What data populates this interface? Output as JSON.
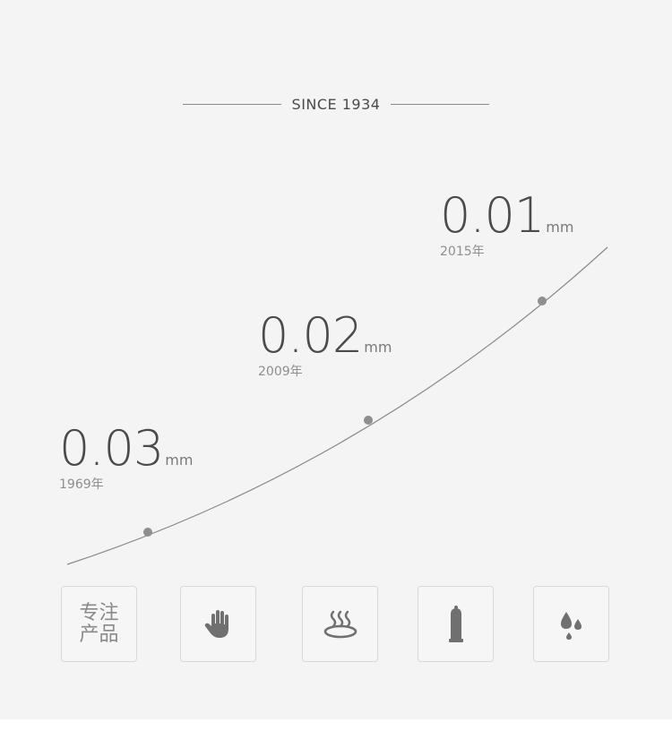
{
  "header": {
    "since_label": "SINCE 1934"
  },
  "milestones": [
    {
      "value": "0.03",
      "unit": "mm",
      "year": "1969年"
    },
    {
      "value": "0.02",
      "unit": "mm",
      "year": "2009年"
    },
    {
      "value": "0.01",
      "unit": "mm",
      "year": "2015年"
    }
  ],
  "features": [
    {
      "label": "专注产品",
      "icon": "text-badge"
    },
    {
      "icon": "hand-icon"
    },
    {
      "icon": "heat-steam-icon"
    },
    {
      "icon": "condom-icon"
    },
    {
      "icon": "water-drops-icon"
    }
  ],
  "colors": {
    "background": "#f4f4f4",
    "text": "#4b4b4b",
    "curve": "#8a8a8a",
    "icon": "#7a7a7a"
  }
}
